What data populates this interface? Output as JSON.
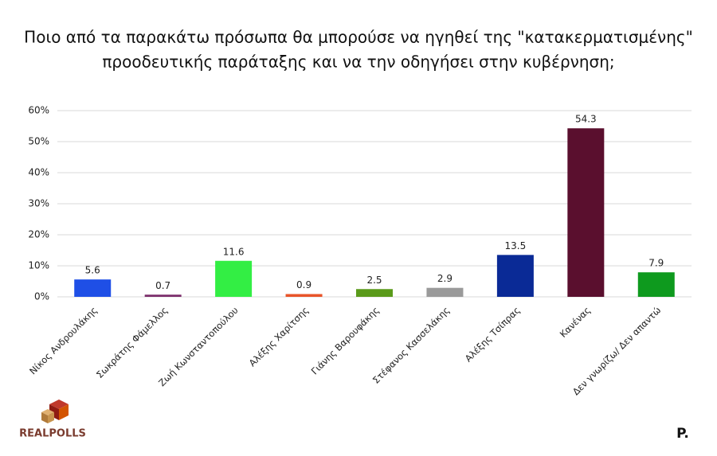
{
  "chart_data": {
    "type": "bar",
    "title": [
      "Ποιο από τα παρακάτω πρόσωπα θα μπορούσε να ηγηθεί της \"κατακερματισμένης\"",
      "προοδευτικής παράταξης και να την οδηγήσει στην κυβέρνηση;"
    ],
    "categories": [
      "Νίκος Ανδρουλάκης",
      "Σωκράτης Φάμελλος",
      "Ζωή Κωνσταντοπούλου",
      "Αλέξης Χαρίτσης",
      "Γιάνης Βαρουφάκης",
      "Στέφανος Κασσελάκης",
      "Αλέξης Τσίπρας",
      "Κανένας",
      "Δεν γνωρίζω/ Δεν απαντώ"
    ],
    "values": [
      5.6,
      0.7,
      11.6,
      0.9,
      2.5,
      2.9,
      13.5,
      54.3,
      7.9
    ],
    "colors": [
      "#1f4fe6",
      "#7b2d6b",
      "#33ee44",
      "#e8542a",
      "#5a9a1a",
      "#9a9a9a",
      "#0a2a96",
      "#5a0f2e",
      "#0e9a1e"
    ],
    "ylim": [
      0,
      60
    ],
    "yticks": [
      {
        "value": 0,
        "label": "0%"
      },
      {
        "value": 10,
        "label": "10%"
      },
      {
        "value": 20,
        "label": "20%"
      },
      {
        "value": 30,
        "label": "30%"
      },
      {
        "value": 40,
        "label": "40%"
      },
      {
        "value": 50,
        "label": "50%"
      },
      {
        "value": 60,
        "label": "60%"
      }
    ],
    "grid": true
  },
  "logo": "REALPOLLS",
  "brand": "P."
}
